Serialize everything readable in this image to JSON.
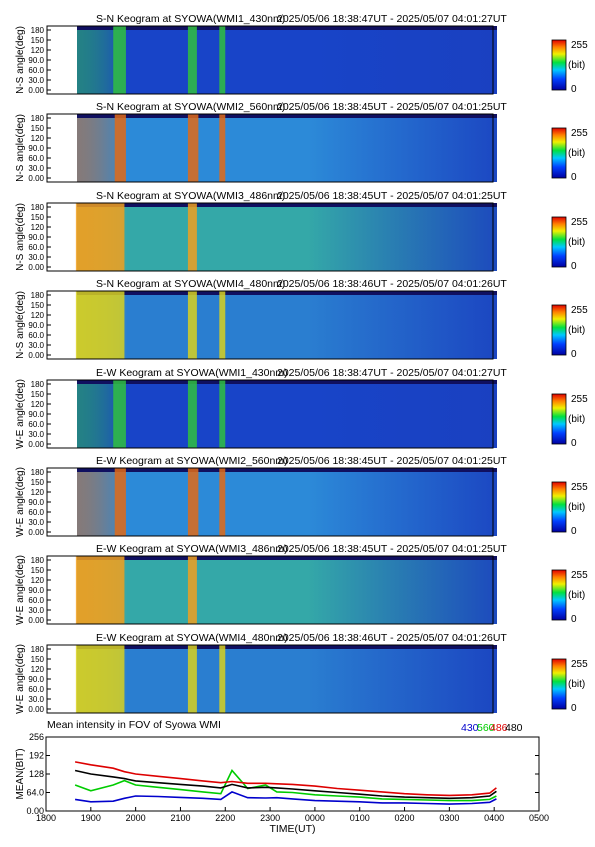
{
  "colorbar": {
    "max_label": "255",
    "unit_label": "(bit)",
    "min_label": "0"
  },
  "keograms": [
    {
      "title": "S-N Keogram at SYOWA(WMI1_430nm)",
      "time_range": "2025/05/06 18:38:47UT - 2025/05/07 04:01:27UT",
      "ylabel": "N-S angle(deg)",
      "yticks": [
        "180",
        "150",
        "120",
        "90.0",
        "60.0",
        "30.0",
        "0.00"
      ],
      "base_color": "#1844c8",
      "bright_color": "#30c040",
      "bright_bands_utc": [
        "19:30",
        "19:47",
        "21:10",
        "21:22",
        "21:52",
        "22:00"
      ]
    },
    {
      "title": "S-N Keogram at SYOWA(WMI2_560nm)",
      "time_range": "2025/05/06 18:38:45UT - 2025/05/07 04:01:25UT",
      "ylabel": "N-S angle(deg)",
      "yticks": [
        "180",
        "150",
        "120",
        "90.0",
        "60.0",
        "30.0",
        "0.00"
      ],
      "base_color": "#2c8ad8",
      "bright_color": "#e06a18",
      "bright_bands_utc": [
        "19:32",
        "19:47",
        "21:10",
        "21:24",
        "21:52",
        "22:00"
      ]
    },
    {
      "title": "S-N Keogram at SYOWA(WMI3_486nm)",
      "time_range": "2025/05/06 18:38:45UT - 2025/05/07 04:01:25UT",
      "ylabel": "N-S angle(deg)",
      "yticks": [
        "180",
        "150",
        "120",
        "90.0",
        "60.0",
        "30.0",
        "0.00"
      ],
      "base_color": "#34a8a8",
      "bright_color": "#f0a020",
      "bright_bands_utc": [
        "18:40",
        "19:45",
        "21:10",
        "21:22"
      ]
    },
    {
      "title": "S-N Keogram at SYOWA(WMI4_480nm)",
      "time_range": "2025/05/06 18:38:46UT - 2025/05/07 04:01:26UT",
      "ylabel": "N-S angle(deg)",
      "yticks": [
        "180",
        "150",
        "120",
        "90.0",
        "60.0",
        "30.0",
        "0.00"
      ],
      "base_color": "#2a7ed0",
      "bright_color": "#d8d020",
      "bright_bands_utc": [
        "18:40",
        "19:45",
        "21:10",
        "21:22",
        "21:52",
        "22:00"
      ]
    },
    {
      "title": "E-W Keogram at SYOWA(WMI1_430nm)",
      "time_range": "2025/05/06 18:38:47UT - 2025/05/07 04:01:27UT",
      "ylabel": "W-E angle(deg)",
      "yticks": [
        "180",
        "150",
        "120",
        "90.0",
        "60.0",
        "30.0",
        "0.00"
      ],
      "base_color": "#1844c8",
      "bright_color": "#30c040",
      "bright_bands_utc": [
        "19:30",
        "19:47",
        "21:10",
        "21:22",
        "21:52",
        "22:00"
      ]
    },
    {
      "title": "E-W Keogram at SYOWA(WMI2_560nm)",
      "time_range": "2025/05/06 18:38:45UT - 2025/05/07 04:01:25UT",
      "ylabel": "W-E angle(deg)",
      "yticks": [
        "180",
        "150",
        "120",
        "90.0",
        "60.0",
        "30.0",
        "0.00"
      ],
      "base_color": "#2c8ad8",
      "bright_color": "#e06a18",
      "bright_bands_utc": [
        "19:32",
        "19:47",
        "21:10",
        "21:24",
        "21:52",
        "22:00"
      ]
    },
    {
      "title": "E-W Keogram at SYOWA(WMI3_486nm)",
      "time_range": "2025/05/06 18:38:45UT - 2025/05/07 04:01:25UT",
      "ylabel": "W-E angle(deg)",
      "yticks": [
        "180",
        "150",
        "120",
        "90.0",
        "60.0",
        "30.0",
        "0.00"
      ],
      "base_color": "#34a8a8",
      "bright_color": "#f0a020",
      "bright_bands_utc": [
        "18:40",
        "19:45",
        "21:10",
        "21:22"
      ]
    },
    {
      "title": "E-W Keogram at SYOWA(WMI4_480nm)",
      "time_range": "2025/05/06 18:38:46UT - 2025/05/07 04:01:26UT",
      "ylabel": "W-E angle(deg)",
      "yticks": [
        "180",
        "150",
        "120",
        "90.0",
        "60.0",
        "30.0",
        "0.00"
      ],
      "base_color": "#2a7ed0",
      "bright_color": "#d8d020",
      "bright_bands_utc": [
        "18:40",
        "19:45",
        "21:10",
        "21:22",
        "21:52",
        "22:00"
      ]
    }
  ],
  "chart_data": {
    "type": "line",
    "title": "Mean intensity in FOV of Syowa WMI",
    "xlabel": "TIME(UT)",
    "ylabel": "MEAN(BIT)",
    "x_tick_labels": [
      "1800",
      "1900",
      "2000",
      "2100",
      "2200",
      "2300",
      "0000",
      "0100",
      "0200",
      "0300",
      "0400",
      "0500"
    ],
    "y_tick_labels": [
      "256",
      "192",
      "128",
      "64.0",
      "0.00"
    ],
    "ylim": [
      0,
      256
    ],
    "grid": false,
    "legend_position": "top-right",
    "x": [
      18.65,
      19.0,
      19.5,
      19.75,
      20.0,
      20.5,
      21.0,
      21.5,
      21.9,
      22.15,
      22.5,
      22.9,
      23.15,
      23.5,
      24.0,
      24.5,
      25.0,
      25.5,
      26.0,
      26.5,
      27.0,
      27.5,
      27.9,
      28.05
    ],
    "series": [
      {
        "name": "430",
        "color": "#0000cc",
        "values": [
          40,
          32,
          34,
          44,
          52,
          50,
          47,
          44,
          40,
          66,
          46,
          45,
          46,
          42,
          36,
          34,
          32,
          28,
          28,
          26,
          24,
          26,
          30,
          42
        ]
      },
      {
        "name": "560",
        "color": "#00cc00",
        "values": [
          90,
          70,
          90,
          105,
          90,
          82,
          74,
          66,
          60,
          140,
          78,
          90,
          66,
          64,
          56,
          52,
          48,
          42,
          40,
          38,
          36,
          36,
          40,
          52
        ]
      },
      {
        "name": "486",
        "color": "#dd0000",
        "values": [
          170,
          160,
          148,
          136,
          128,
          120,
          112,
          104,
          98,
          102,
          96,
          96,
          94,
          92,
          86,
          78,
          72,
          66,
          60,
          56,
          54,
          56,
          62,
          80
        ]
      },
      {
        "name": "480",
        "color": "#000000",
        "values": [
          140,
          128,
          118,
          112,
          104,
          98,
          92,
          86,
          80,
          92,
          80,
          82,
          80,
          76,
          70,
          64,
          58,
          52,
          48,
          46,
          44,
          46,
          52,
          68
        ]
      }
    ]
  }
}
